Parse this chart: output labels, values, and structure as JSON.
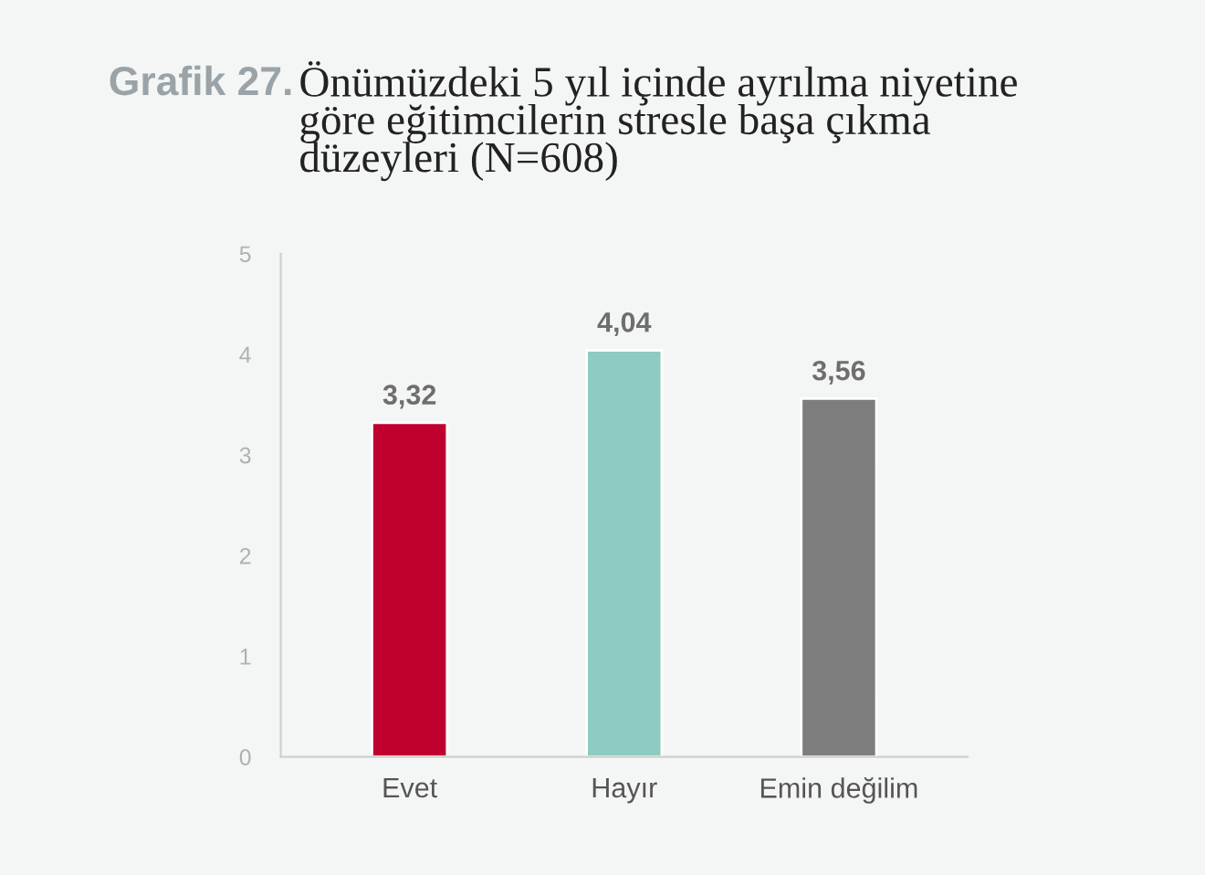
{
  "chart_data": {
    "type": "bar",
    "title": "Grafik 27.",
    "subtitle": "Önümüzdeki 5 yıl içinde ayrılma niyetine\ngöre eğitimcilerin stresle başa çıkma\ndüzeyleri (N=608)",
    "categories": [
      "Evet",
      "Hayır",
      "Emin değilim"
    ],
    "values": [
      3.32,
      4.04,
      3.56
    ],
    "colors": [
      "#c0002f",
      "#8ecbc1",
      "#7d7d7d"
    ],
    "value_labels": [
      "3,32",
      "4,04",
      "3,56"
    ],
    "ylim": [
      0,
      5
    ],
    "yticks": [
      0,
      1,
      2,
      3,
      4,
      5
    ],
    "grid": false,
    "legend": false
  }
}
